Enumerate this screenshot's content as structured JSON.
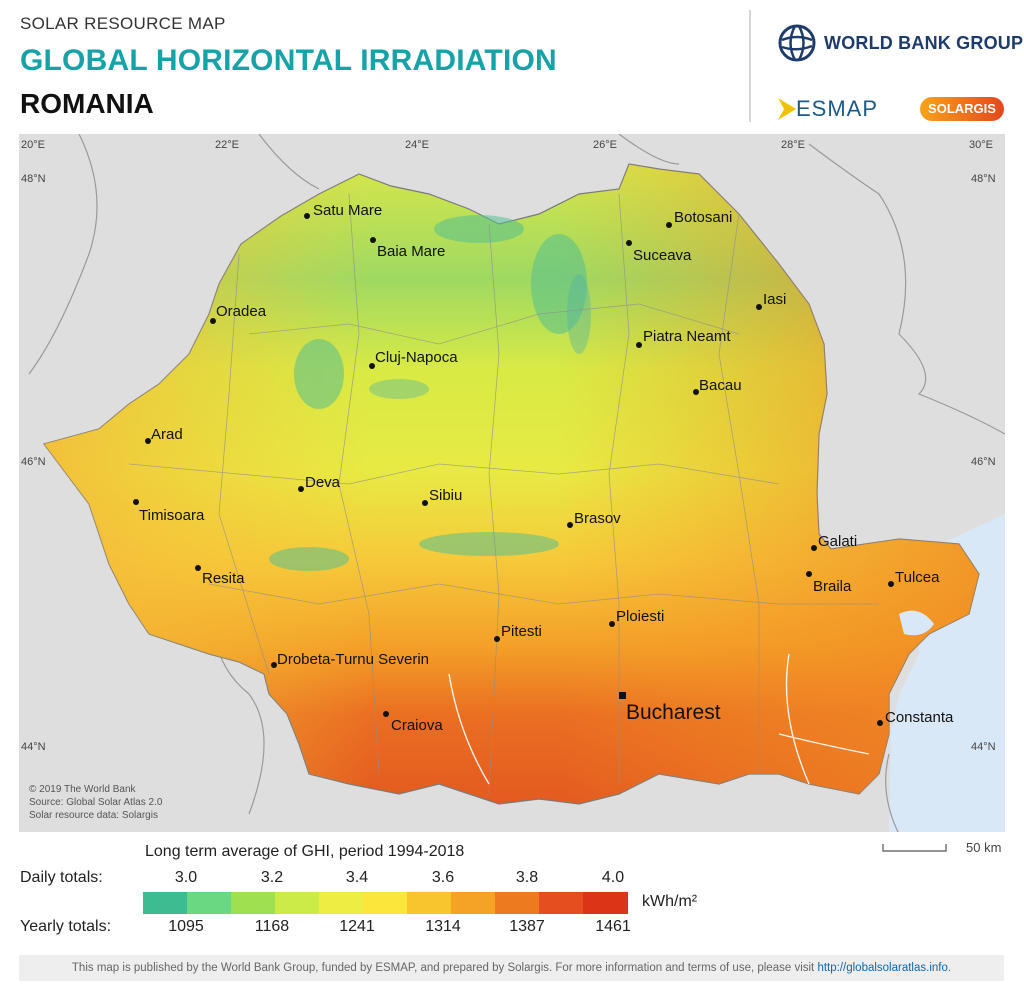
{
  "header": {
    "kicker": "SOLAR RESOURCE MAP",
    "title": "GLOBAL HORIZONTAL IRRADIATION",
    "country": "ROMANIA"
  },
  "logos": {
    "world_bank": "WORLD BANK GROUP",
    "esmap": "ESMAP",
    "solargis": "SOLARGIS"
  },
  "map": {
    "lon_labels": [
      "20°E",
      "22°E",
      "24°E",
      "26°E",
      "28°E",
      "30°E"
    ],
    "lat_labels": [
      "48°N",
      "46°N",
      "44°N"
    ],
    "cities": {
      "satu_mare": "Satu Mare",
      "baia_mare": "Baia Mare",
      "botosani": "Botosani",
      "suceava": "Suceava",
      "oradea": "Oradea",
      "iasi": "Iasi",
      "cluj": "Cluj-Napoca",
      "piatra": "Piatra Neamt",
      "bacau": "Bacau",
      "arad": "Arad",
      "deva": "Deva",
      "sibiu": "Sibiu",
      "timisoara": "Timisoara",
      "brasov": "Brasov",
      "galati": "Galati",
      "resita": "Resita",
      "braila": "Braila",
      "tulcea": "Tulcea",
      "pitesti": "Pitesti",
      "ploiesti": "Ploiesti",
      "drobeta": "Drobeta-Turnu Severin",
      "bucharest": "Bucharest",
      "craiova": "Craiova",
      "constanta": "Constanta"
    },
    "credits": {
      "line1": "© 2019 The World Bank",
      "line2": "Source: Global Solar Atlas 2.0",
      "line3": "Solar resource data: Solargis"
    },
    "scale_bar": "50 km"
  },
  "legend": {
    "title": "Long term average of GHI, period 1994-2018",
    "daily_label": "Daily totals:",
    "yearly_label": "Yearly totals:",
    "daily_ticks": [
      "3.0",
      "3.2",
      "3.4",
      "3.6",
      "3.8",
      "4.0"
    ],
    "yearly_ticks": [
      "1095",
      "1168",
      "1241",
      "1314",
      "1387",
      "1461"
    ],
    "unit": "kWh/m²",
    "colors": [
      "#3dbb91",
      "#6ad783",
      "#9fe050",
      "#cdeb46",
      "#ecee43",
      "#fbe73c",
      "#f8c52f",
      "#f5a324",
      "#ee7a1f",
      "#e54e1e",
      "#da3517"
    ]
  },
  "footer": {
    "text": "This map is published by the World Bank Group, funded by ESMAP, and prepared by Solargis. For more information and terms of use, please visit",
    "link": "http://globalsolaratlas.info",
    "suffix": "."
  }
}
